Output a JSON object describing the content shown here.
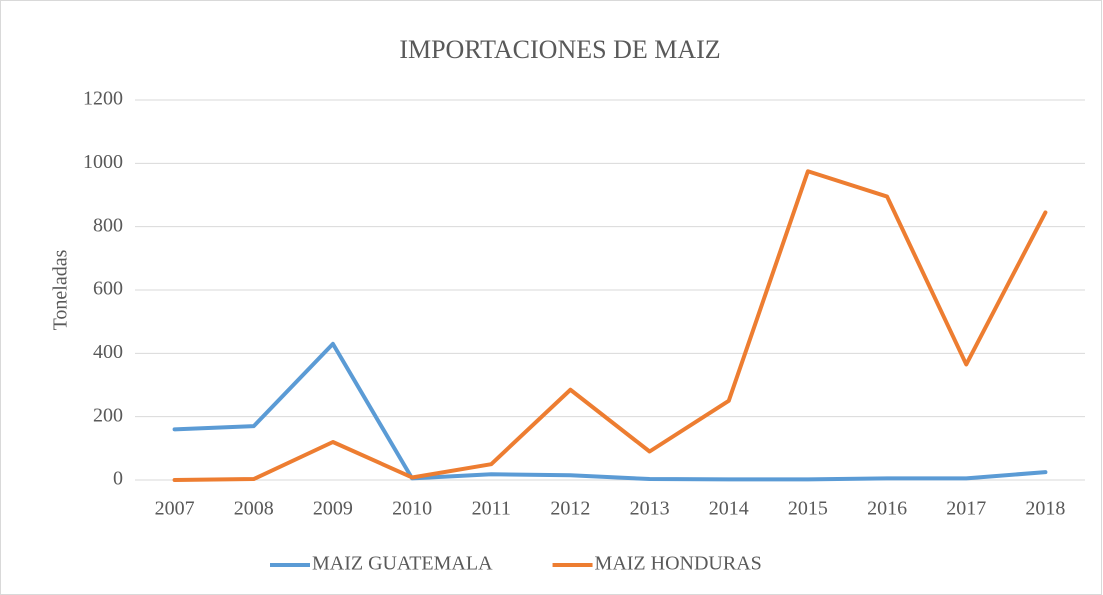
{
  "chart_data": {
    "type": "line",
    "title": "IMPORTACIONES DE MAIZ",
    "y_label": "Toneladas",
    "categories": [
      "2007",
      "2008",
      "2009",
      "2010",
      "2011",
      "2012",
      "2013",
      "2014",
      "2015",
      "2016",
      "2017",
      "2018"
    ],
    "series": [
      {
        "name": "MAIZ GUATEMALA",
        "color": "#5b9bd5",
        "values": [
          160,
          170,
          430,
          5,
          18,
          15,
          3,
          2,
          2,
          5,
          5,
          25
        ]
      },
      {
        "name": "MAIZ HONDURAS",
        "color": "#ed7d31",
        "values": [
          0,
          3,
          120,
          8,
          50,
          285,
          90,
          250,
          975,
          895,
          365,
          845
        ]
      }
    ],
    "ylim": [
      0,
      1200
    ],
    "yticks": [
      0,
      200,
      400,
      600,
      800,
      1000,
      1200
    ],
    "grid": true,
    "legend": "bottom"
  }
}
